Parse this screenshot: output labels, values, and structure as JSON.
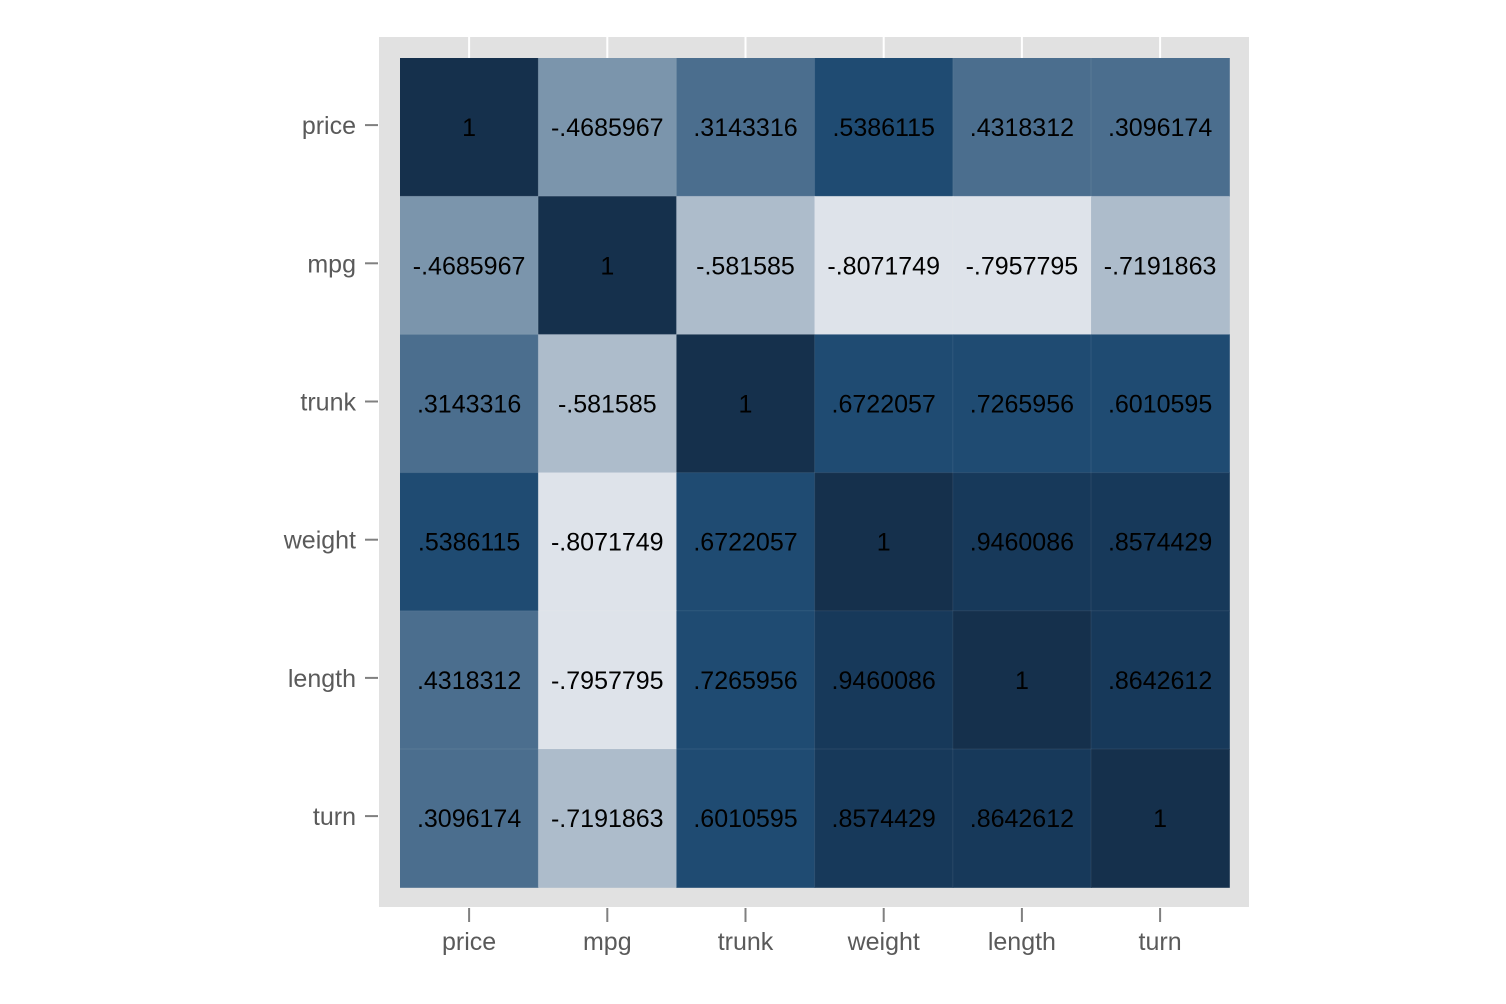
{
  "chart_data": {
    "type": "heatmap",
    "title": "",
    "xlabel": "",
    "ylabel": "",
    "x_categories": [
      "price",
      "mpg",
      "trunk",
      "weight",
      "length",
      "turn"
    ],
    "y_categories": [
      "price",
      "mpg",
      "trunk",
      "weight",
      "length",
      "turn"
    ],
    "labels": [
      [
        "1",
        "-.4685967",
        ".3143316",
        ".5386115",
        ".4318312",
        ".3096174"
      ],
      [
        "-.4685967",
        "1",
        "-.581585",
        "-.8071749",
        "-.7957795",
        "-.7191863"
      ],
      [
        ".3143316",
        "-.581585",
        "1",
        ".6722057",
        ".7265956",
        ".6010595"
      ],
      [
        ".5386115",
        "-.8071749",
        ".6722057",
        "1",
        ".9460086",
        ".8574429"
      ],
      [
        ".4318312",
        "-.7957795",
        ".7265956",
        ".9460086",
        "1",
        ".8642612"
      ],
      [
        ".3096174",
        "-.7191863",
        ".6010595",
        ".8574429",
        ".8642612",
        "1"
      ]
    ],
    "values": [
      [
        1,
        -0.4685967,
        0.3143316,
        0.5386115,
        0.4318312,
        0.3096174
      ],
      [
        -0.4685967,
        1,
        -0.581585,
        -0.8071749,
        -0.7957795,
        -0.7191863
      ],
      [
        0.3143316,
        -0.581585,
        1,
        0.6722057,
        0.7265956,
        0.6010595
      ],
      [
        0.5386115,
        -0.8071749,
        0.6722057,
        1,
        0.9460086,
        0.8574429
      ],
      [
        0.4318312,
        -0.7957795,
        0.7265956,
        0.9460086,
        1,
        0.8642612
      ],
      [
        0.3096174,
        -0.7191863,
        0.6010595,
        0.8574429,
        0.8642612,
        1
      ]
    ],
    "color_bins": [
      {
        "min": -1.0,
        "max": -0.75,
        "color": "#dee3ea"
      },
      {
        "min": -0.75,
        "max": -0.5,
        "color": "#adbccb"
      },
      {
        "min": -0.5,
        "max": 0.0,
        "color": "#7b95ac"
      },
      {
        "min": 0.0,
        "max": 0.5,
        "color": "#4b6e8e"
      },
      {
        "min": 0.5,
        "max": 0.75,
        "color": "#1f4b72"
      },
      {
        "min": 0.75,
        "max": 0.95,
        "color": "#17395a"
      },
      {
        "min": 0.95,
        "max": 1.01,
        "color": "#15304c"
      }
    ],
    "grid": false,
    "legend": "none"
  },
  "colors": {
    "panel_background": "#e1e1e1",
    "cell_text": "#000000",
    "axis_text": "#5a5a5a",
    "tick": "#808080"
  }
}
